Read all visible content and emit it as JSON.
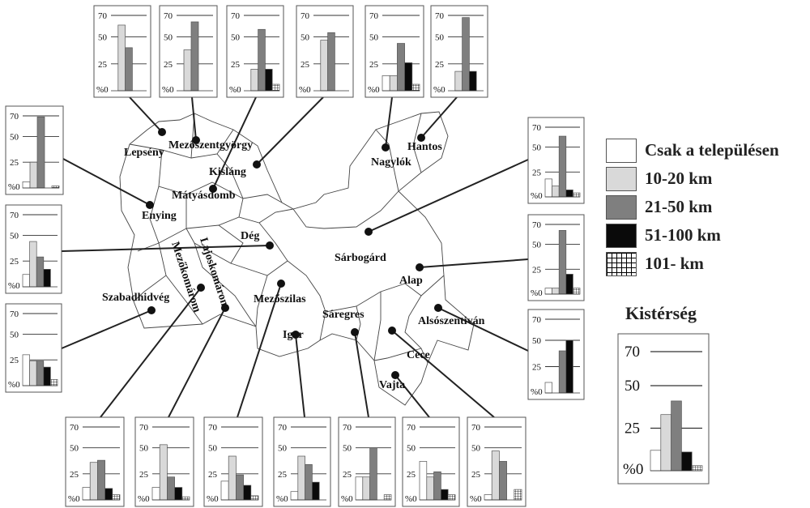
{
  "colors": {
    "cat0": "#ffffff",
    "cat1": "#d9d9d9",
    "cat2": "#7f7f7f",
    "cat3": "#0a0a0a",
    "cat4": "grid",
    "border": "#555555",
    "line": "#222222"
  },
  "legend": {
    "items": [
      {
        "label": "Csak a településen",
        "color": "#ffffff"
      },
      {
        "label": "10-20 km",
        "color": "#d9d9d9"
      },
      {
        "label": "21-50 km",
        "color": "#7f7f7f"
      },
      {
        "label": "51-100 km",
        "color": "#0a0a0a"
      },
      {
        "label": "101- km",
        "color": "grid"
      }
    ]
  },
  "summary": {
    "title": "Kistérség"
  },
  "axis": {
    "ticks": [
      25,
      50,
      70
    ],
    "origin_label": "%0",
    "ymax": 70
  },
  "places": [
    {
      "name": "Lepsény"
    },
    {
      "name": "Mezőszentgyörgy"
    },
    {
      "name": "Kisláng"
    },
    {
      "name": "Mátyásdomb"
    },
    {
      "name": "Enying"
    },
    {
      "name": "Nagylók"
    },
    {
      "name": "Hantos"
    },
    {
      "name": "Dég"
    },
    {
      "name": "Sárbogárd"
    },
    {
      "name": "Alap"
    },
    {
      "name": "Lajoskomárom"
    },
    {
      "name": "Mezőkomárom"
    },
    {
      "name": "Szabadhidvég"
    },
    {
      "name": "Mezőszilas"
    },
    {
      "name": "Sáregres"
    },
    {
      "name": "Igar"
    },
    {
      "name": "Alsószentiván"
    },
    {
      "name": "Cece"
    },
    {
      "name": "Vajta"
    }
  ],
  "chart_data": [
    {
      "type": "bar",
      "place": "Lepsény",
      "categories": [
        "Csak a településen",
        "10-20 km",
        "21-50 km",
        "51-100 km",
        "101- km"
      ],
      "values": [
        0,
        61,
        40,
        0,
        0
      ],
      "ylim": [
        0,
        70
      ]
    },
    {
      "type": "bar",
      "place": "Mezőszentgyörgy",
      "categories": [
        "Csak a településen",
        "10-20 km",
        "21-50 km",
        "51-100 km",
        "101- km"
      ],
      "values": [
        0,
        38,
        64,
        0,
        0
      ],
      "ylim": [
        0,
        70
      ]
    },
    {
      "type": "bar",
      "place": "Kisláng",
      "categories": [
        "Csak a településen",
        "10-20 km",
        "21-50 km",
        "51-100 km",
        "101- km"
      ],
      "values": [
        0,
        20,
        57,
        20,
        6
      ],
      "ylim": [
        0,
        70
      ]
    },
    {
      "type": "bar",
      "place": "Mátyásdomb",
      "categories": [
        "Csak a településen",
        "10-20 km",
        "21-50 km",
        "51-100 km",
        "101- km"
      ],
      "values": [
        0,
        47,
        54,
        0,
        0
      ],
      "ylim": [
        0,
        70
      ]
    },
    {
      "type": "bar",
      "place": "Nagylók",
      "categories": [
        "Csak a településen",
        "10-20 km",
        "21-50 km",
        "51-100 km",
        "101- km"
      ],
      "values": [
        14,
        14,
        44,
        26,
        6
      ],
      "ylim": [
        0,
        70
      ]
    },
    {
      "type": "bar",
      "place": "Hantos",
      "categories": [
        "Csak a településen",
        "10-20 km",
        "21-50 km",
        "51-100 km",
        "101- km"
      ],
      "values": [
        0,
        18,
        68,
        18,
        0
      ],
      "ylim": [
        0,
        70
      ]
    },
    {
      "type": "bar",
      "place": "Enying",
      "categories": [
        "Csak a településen",
        "10-20 km",
        "21-50 km",
        "51-100 km",
        "101- km"
      ],
      "values": [
        6,
        25,
        69,
        0,
        2
      ],
      "ylim": [
        0,
        70
      ]
    },
    {
      "type": "bar",
      "place": "Dég",
      "categories": [
        "Csak a településen",
        "10-20 km",
        "21-50 km",
        "51-100 km",
        "101- km"
      ],
      "values": [
        12,
        44,
        29,
        17,
        0
      ],
      "ylim": [
        0,
        70
      ]
    },
    {
      "type": "bar",
      "place": "Szabadhidvég",
      "categories": [
        "Csak a településen",
        "10-20 km",
        "21-50 km",
        "51-100 km",
        "101- km"
      ],
      "values": [
        30,
        24,
        24,
        18,
        6
      ],
      "ylim": [
        0,
        70
      ]
    },
    {
      "type": "bar",
      "place": "Sárbogárd",
      "categories": [
        "Csak a településen",
        "10-20 km",
        "21-50 km",
        "51-100 km",
        "101- km"
      ],
      "values": [
        18,
        11,
        61,
        7,
        4
      ],
      "ylim": [
        0,
        70
      ]
    },
    {
      "type": "bar",
      "place": "Alap",
      "categories": [
        "Csak a településen",
        "10-20 km",
        "21-50 km",
        "51-100 km",
        "101- km"
      ],
      "values": [
        6,
        6,
        64,
        20,
        6
      ],
      "ylim": [
        0,
        70
      ]
    },
    {
      "type": "bar",
      "place": "Alsószentiván",
      "categories": [
        "Csak a településen",
        "10-20 km",
        "21-50 km",
        "51-100 km",
        "101- km"
      ],
      "values": [
        10,
        0,
        40,
        50,
        0
      ],
      "ylim": [
        0,
        70
      ]
    },
    {
      "type": "bar",
      "place": "Mezőkomárom",
      "categories": [
        "Csak a településen",
        "10-20 km",
        "21-50 km",
        "51-100 km",
        "101- km"
      ],
      "values": [
        12,
        36,
        38,
        11,
        5
      ],
      "ylim": [
        0,
        70
      ]
    },
    {
      "type": "bar",
      "place": "Lajoskomárom",
      "categories": [
        "Csak a településen",
        "10-20 km",
        "21-50 km",
        "51-100 km",
        "101- km"
      ],
      "values": [
        12,
        53,
        22,
        12,
        3
      ],
      "ylim": [
        0,
        70
      ]
    },
    {
      "type": "bar",
      "place": "Mezőszilas",
      "categories": [
        "Csak a településen",
        "10-20 km",
        "21-50 km",
        "51-100 km",
        "101- km"
      ],
      "values": [
        18,
        42,
        24,
        14,
        4
      ],
      "ylim": [
        0,
        70
      ]
    },
    {
      "type": "bar",
      "place": "Igar",
      "categories": [
        "Csak a településen",
        "10-20 km",
        "21-50 km",
        "51-100 km",
        "101- km"
      ],
      "values": [
        8,
        42,
        34,
        17,
        0
      ],
      "ylim": [
        0,
        70
      ]
    },
    {
      "type": "bar",
      "place": "Sáregres",
      "categories": [
        "Csak a településen",
        "10-20 km",
        "21-50 km",
        "51-100 km",
        "101- km"
      ],
      "values": [
        22,
        22,
        50,
        0,
        5
      ],
      "ylim": [
        0,
        70
      ]
    },
    {
      "type": "bar",
      "place": "Vajta",
      "categories": [
        "Csak a településen",
        "10-20 km",
        "21-50 km",
        "51-100 km",
        "101- km"
      ],
      "values": [
        37,
        22,
        27,
        10,
        5
      ],
      "ylim": [
        0,
        70
      ]
    },
    {
      "type": "bar",
      "place": "Cece",
      "categories": [
        "Csak a településen",
        "10-20 km",
        "21-50 km",
        "51-100 km",
        "101- km"
      ],
      "values": [
        5,
        47,
        37,
        0,
        10
      ],
      "ylim": [
        0,
        70
      ]
    },
    {
      "type": "bar",
      "place": "Kistérség",
      "categories": [
        "Csak a településen",
        "10-20 km",
        "21-50 km",
        "51-100 km",
        "101- km"
      ],
      "values": [
        12,
        33,
        41,
        11,
        3
      ],
      "ylim": [
        0,
        70
      ]
    }
  ]
}
